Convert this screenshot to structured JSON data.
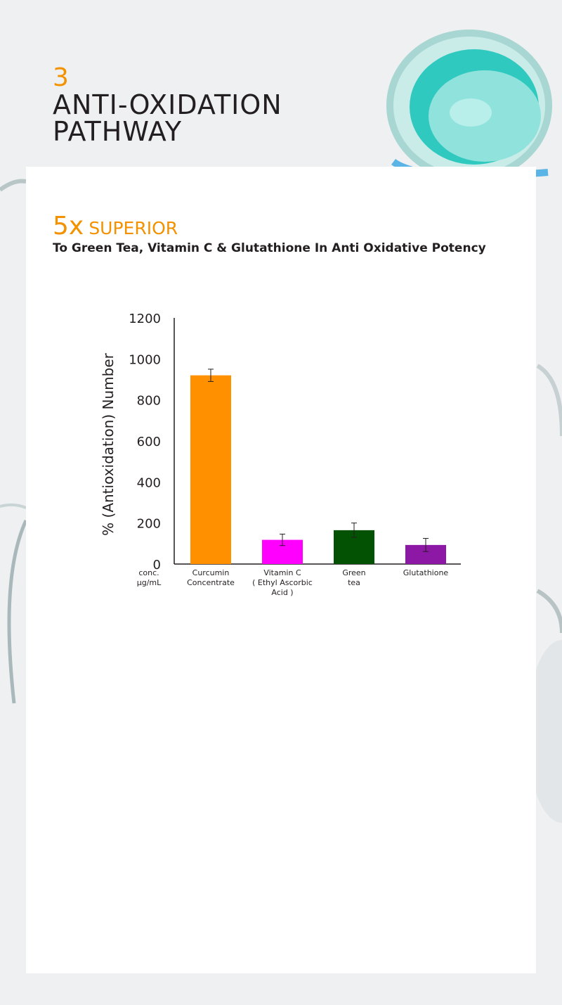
{
  "header": {
    "step_number": "3",
    "title_line1": "ANTI-OXIDATION",
    "title_line2": "PATHWAY"
  },
  "claim": {
    "multiplier": "5x",
    "label": "SUPERIOR",
    "subtitle": "To Green Tea, Vitamin C & Glutathione In Anti Oxidative Potency"
  },
  "colors": {
    "accent": "#f39200",
    "text": "#231f20"
  },
  "chart_data": {
    "type": "bar",
    "ylabel": "%  (Antioxidation) Number",
    "x_caption": [
      "conc.",
      "µg/mL"
    ],
    "ylim": [
      0,
      1200
    ],
    "yticks": [
      0,
      200,
      400,
      600,
      800,
      1000,
      1200
    ],
    "grid": false,
    "categories": [
      [
        "Curcumin",
        "Concentrate"
      ],
      [
        "Vitamin C",
        "( Ethyl Ascorbic",
        "Acid )"
      ],
      [
        "Green",
        "tea"
      ],
      [
        "Glutathione"
      ]
    ],
    "values": [
      920,
      118,
      165,
      93
    ],
    "errors": [
      30,
      28,
      35,
      32
    ],
    "colors": [
      "#ff9100",
      "#ff00ff",
      "#035203",
      "#8d18a5"
    ]
  }
}
